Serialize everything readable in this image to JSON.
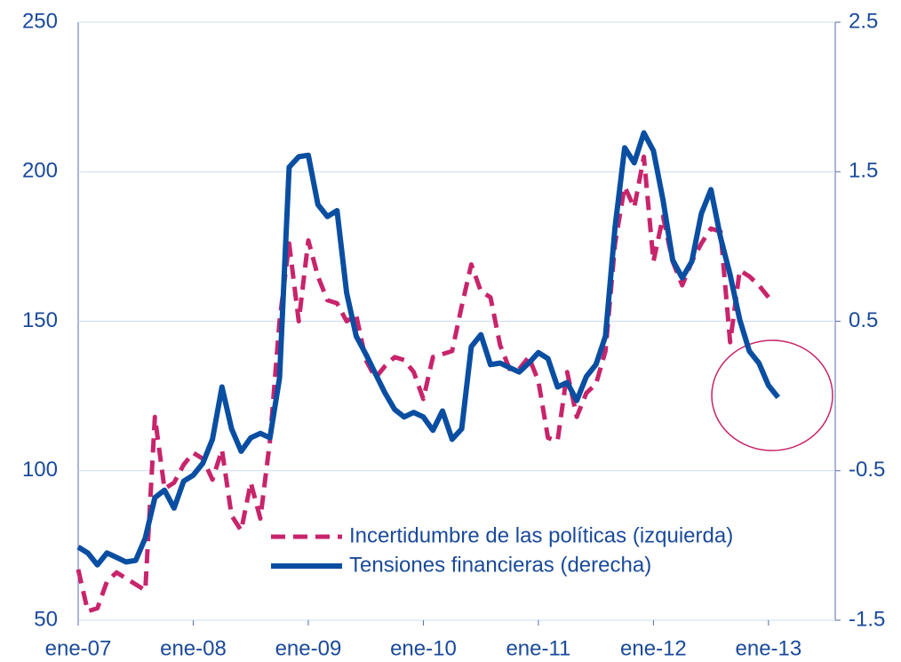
{
  "chart_data": {
    "type": "line",
    "categories": [
      "ene-07",
      null,
      null,
      null,
      null,
      null,
      null,
      null,
      null,
      null,
      null,
      null,
      "ene-08",
      null,
      null,
      null,
      null,
      null,
      null,
      null,
      null,
      null,
      null,
      null,
      "ene-09",
      null,
      null,
      null,
      null,
      null,
      null,
      null,
      null,
      null,
      null,
      null,
      "ene-10",
      null,
      null,
      null,
      null,
      null,
      null,
      null,
      null,
      null,
      null,
      null,
      "ene-11",
      null,
      null,
      null,
      null,
      null,
      null,
      null,
      null,
      null,
      null,
      null,
      "ene-12",
      null,
      null,
      null,
      null,
      null,
      null,
      null,
      null,
      null,
      null,
      null,
      "ene-13",
      null
    ],
    "series": [
      {
        "name": "Incertidumbre de las políticas (izquierda)",
        "color": "#c8246b",
        "dashed": true,
        "axis": "y",
        "values": [
          67,
          53,
          54,
          63,
          66,
          64,
          62,
          60,
          118,
          94,
          96,
          102,
          106,
          104,
          97,
          107,
          85,
          80,
          96,
          84,
          110,
          150,
          176,
          150,
          177,
          165,
          157,
          156,
          150,
          152,
          137,
          131,
          135,
          138,
          137,
          133,
          124,
          138,
          139,
          140,
          155,
          169,
          160,
          158,
          142,
          134,
          134,
          138,
          130,
          111,
          110,
          133,
          118,
          126,
          129,
          140,
          176,
          195,
          188,
          205,
          170,
          185,
          170,
          162,
          170,
          176,
          181,
          180,
          143,
          167,
          165,
          162,
          158,
          null
        ]
      },
      {
        "name": "Tensiones financieras (derecha)",
        "color": "#0a4ea2",
        "dashed": false,
        "axis": "y2",
        "values": [
          -1.01,
          -1.05,
          -1.13,
          -1.05,
          -1.08,
          -1.11,
          -1.1,
          -0.95,
          -0.68,
          -0.63,
          -0.75,
          -0.57,
          -0.53,
          -0.45,
          -0.29,
          0.06,
          -0.22,
          -0.37,
          -0.28,
          -0.25,
          -0.28,
          0.12,
          1.53,
          1.6,
          1.61,
          1.28,
          1.2,
          1.24,
          0.69,
          0.4,
          0.28,
          0.15,
          0.02,
          -0.09,
          -0.14,
          -0.11,
          -0.14,
          -0.23,
          -0.1,
          -0.29,
          -0.22,
          0.33,
          0.41,
          0.21,
          0.22,
          0.19,
          0.16,
          0.22,
          0.29,
          0.25,
          0.06,
          0.09,
          -0.03,
          0.13,
          0.21,
          0.4,
          1.13,
          1.66,
          1.56,
          1.76,
          1.64,
          1.31,
          0.91,
          0.79,
          0.9,
          1.22,
          1.38,
          1.06,
          0.81,
          0.51,
          0.3,
          0.22,
          0.07,
          -0.01
        ]
      }
    ],
    "ylim": [
      50,
      250
    ],
    "yticks": [
      50,
      100,
      150,
      200,
      250
    ],
    "y2lim": [
      -1.5,
      2.5
    ],
    "y2ticks": [
      -1.5,
      -0.5,
      0.5,
      1.5,
      2.5
    ],
    "grid": true,
    "legend": "lower center"
  }
}
